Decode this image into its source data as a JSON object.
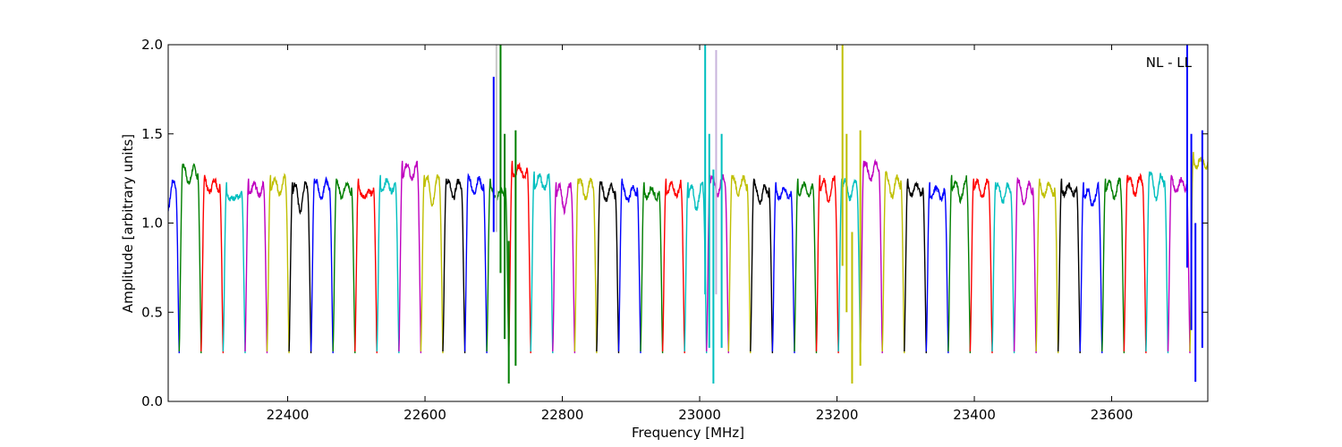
{
  "chart_data": {
    "type": "line",
    "title": "",
    "annotation": "NL - LL",
    "xlabel": "Frequency [MHz]",
    "ylabel": "Amplitude [arbitrary units]",
    "xlim": [
      22226,
      23740
    ],
    "ylim": [
      0.0,
      2.0
    ],
    "xticks": [
      22400,
      22600,
      22800,
      23000,
      23200,
      23400,
      23600
    ],
    "yticks": [
      0.0,
      0.5,
      1.0,
      1.5,
      2.0
    ],
    "xtick_labels": [
      "22400",
      "22600",
      "22800",
      "23000",
      "23200",
      "23400",
      "23600"
    ],
    "ytick_labels": [
      "0.0",
      "0.5",
      "1.0",
      "1.5",
      "2.0"
    ],
    "grid": false,
    "channel_width_mhz": 32,
    "channel_centers": [
      22226,
      22258,
      22290,
      22322,
      22354,
      22386,
      22418,
      22450,
      22482,
      22514,
      22546,
      22578,
      22610,
      22642,
      22674,
      22706,
      22738,
      22770,
      22802,
      22834,
      22866,
      22898,
      22930,
      22962,
      22994,
      23026,
      23058,
      23090,
      23122,
      23154,
      23186,
      23218,
      23250,
      23282,
      23314,
      23346,
      23378,
      23410,
      23442,
      23474,
      23506,
      23538,
      23570,
      23602,
      23634,
      23666,
      23698,
      23730
    ],
    "passband_level": [
      1.2,
      1.28,
      1.22,
      1.18,
      1.2,
      1.22,
      1.18,
      1.2,
      1.2,
      1.2,
      1.22,
      1.3,
      1.22,
      1.2,
      1.22,
      1.2,
      1.3,
      1.24,
      1.18,
      1.2,
      1.18,
      1.2,
      1.18,
      1.2,
      1.18,
      1.22,
      1.22,
      1.2,
      1.18,
      1.2,
      1.22,
      1.2,
      1.3,
      1.24,
      1.2,
      1.18,
      1.22,
      1.2,
      1.18,
      1.2,
      1.2,
      1.2,
      1.18,
      1.2,
      1.22,
      1.24,
      1.22,
      1.35
    ],
    "series_colors": [
      "#0000ff",
      "#007f00",
      "#ff0000",
      "#00bfbf",
      "#bf00bf",
      "#bfbf00",
      "#000000"
    ],
    "spikes": [
      {
        "x": 22700,
        "low": 0.95,
        "high": 1.82,
        "color": "#0000ff"
      },
      {
        "x": 22704,
        "low": 0.95,
        "high": 2.0,
        "color": "#c8c8c8"
      },
      {
        "x": 22710,
        "low": 0.72,
        "high": 2.0,
        "color": "#007f00"
      },
      {
        "x": 22716,
        "low": 0.35,
        "high": 1.5,
        "color": "#007f00"
      },
      {
        "x": 22722,
        "low": 0.1,
        "high": 0.9,
        "color": "#007f00"
      },
      {
        "x": 22732,
        "low": 0.2,
        "high": 1.52,
        "color": "#007f00"
      },
      {
        "x": 23008,
        "low": 0.6,
        "high": 2.0,
        "color": "#00bfbf"
      },
      {
        "x": 23014,
        "low": 0.3,
        "high": 1.5,
        "color": "#00bfbf"
      },
      {
        "x": 23020,
        "low": 0.1,
        "high": 1.3,
        "color": "#00bfbf"
      },
      {
        "x": 23024,
        "low": 0.6,
        "high": 1.97,
        "color": "#c8b4dc"
      },
      {
        "x": 23032,
        "low": 0.3,
        "high": 1.5,
        "color": "#00bfbf"
      },
      {
        "x": 23208,
        "low": 0.76,
        "high": 2.0,
        "color": "#bfbf00"
      },
      {
        "x": 23214,
        "low": 0.5,
        "high": 1.5,
        "color": "#bfbf00"
      },
      {
        "x": 23222,
        "low": 0.1,
        "high": 0.95,
        "color": "#bfbf00"
      },
      {
        "x": 23234,
        "low": 0.2,
        "high": 1.52,
        "color": "#bfbf00"
      },
      {
        "x": 23710,
        "low": 0.75,
        "high": 2.0,
        "color": "#0000ff"
      },
      {
        "x": 23716,
        "low": 0.4,
        "high": 1.5,
        "color": "#0000ff"
      },
      {
        "x": 23722,
        "low": 0.11,
        "high": 1.0,
        "color": "#0000ff"
      },
      {
        "x": 23732,
        "low": 0.3,
        "high": 1.52,
        "color": "#0000ff"
      }
    ]
  }
}
